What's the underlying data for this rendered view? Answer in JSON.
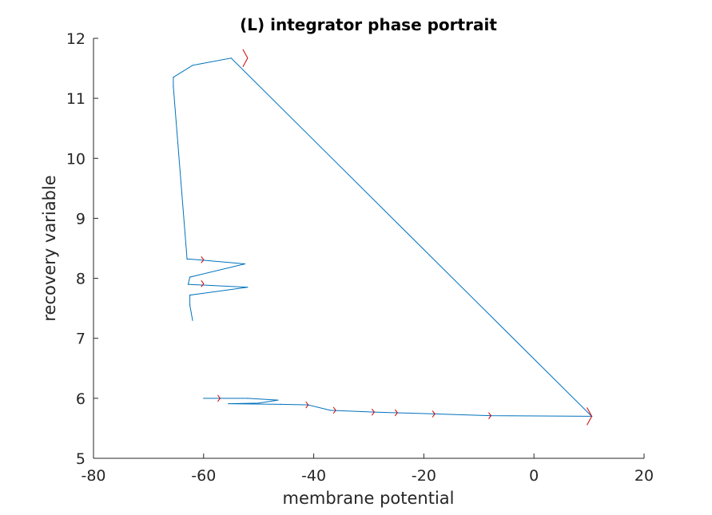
{
  "chart_data": {
    "type": "line",
    "title": "(L) integrator phase portrait",
    "xlabel": "membrane potential",
    "ylabel": "recovery variable",
    "xlim": [
      -80,
      20
    ],
    "ylim": [
      5,
      12
    ],
    "xticks": [
      -80,
      -60,
      -40,
      -20,
      0,
      20
    ],
    "yticks": [
      5,
      6,
      7,
      8,
      9,
      10,
      11,
      12
    ],
    "grid": false,
    "legend": "none",
    "colors": {
      "trajectory": "#0072BD",
      "arrows": "#D00000",
      "axes": "#262626"
    },
    "series": [
      {
        "x": [
          -60,
          -52,
          -46.5,
          -50,
          -55.5,
          -46,
          -41,
          -37,
          -29,
          -18,
          -8,
          10.5,
          -55,
          -62,
          -65.5,
          -65.5,
          -63,
          -62.5,
          -52.5,
          -62.5,
          -62.8,
          -52,
          -62.5,
          -62.5,
          -62
        ],
        "y": [
          6.0,
          6.0,
          5.97,
          5.92,
          5.91,
          5.9,
          5.89,
          5.8,
          5.77,
          5.74,
          5.71,
          5.7,
          11.67,
          11.55,
          11.35,
          11.2,
          8.32,
          8.32,
          8.24,
          8.02,
          7.9,
          7.85,
          7.72,
          7.55,
          7.3
        ]
      }
    ],
    "direction_arrows": [
      {
        "x": 10.5,
        "y": 5.7
      },
      {
        "x": -7.8,
        "y": 5.71
      },
      {
        "x": -18,
        "y": 5.74
      },
      {
        "x": -24.8,
        "y": 5.76
      },
      {
        "x": -29,
        "y": 5.77
      },
      {
        "x": -36,
        "y": 5.8
      },
      {
        "x": -41,
        "y": 5.89
      },
      {
        "x": -57,
        "y": 6.0
      },
      {
        "x": -52,
        "y": 11.67
      },
      {
        "x": -60,
        "y": 8.31
      },
      {
        "x": -60,
        "y": 7.91
      }
    ]
  }
}
